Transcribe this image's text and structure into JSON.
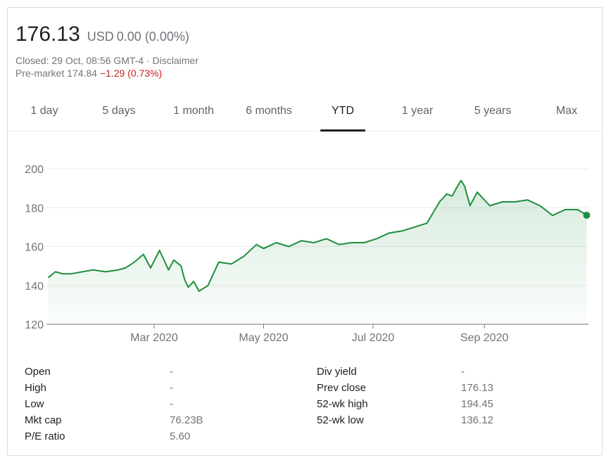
{
  "quote": {
    "price": "176.13",
    "currency": "USD",
    "change": "0.00 (0.00%)",
    "closed_text": "Closed: 29 Oct, 08:56 GMT-4 · ",
    "disclaimer": "Disclaimer",
    "premarket_label": "Pre-market ",
    "premarket_price": "174.84 ",
    "premarket_change": "−1.29 (0.73%)"
  },
  "tabs": [
    "1 day",
    "5 days",
    "1 month",
    "6 months",
    "YTD",
    "1 year",
    "5 years",
    "Max"
  ],
  "active_tab": "YTD",
  "chart_data": {
    "type": "area",
    "y_ticks": [
      "200",
      "180",
      "160",
      "140",
      "120"
    ],
    "ylim": [
      120,
      200
    ],
    "x_ticks": [
      "Mar 2020",
      "May 2020",
      "Jul 2020",
      "Sep 2020"
    ],
    "grid": true,
    "line_color": "#1e8e3e",
    "x": [
      "2020-01-02",
      "2020-01-06",
      "2020-01-10",
      "2020-01-15",
      "2020-01-21",
      "2020-01-27",
      "2020-02-03",
      "2020-02-10",
      "2020-02-14",
      "2020-02-19",
      "2020-02-24",
      "2020-02-28",
      "2020-03-04",
      "2020-03-09",
      "2020-03-12",
      "2020-03-16",
      "2020-03-18",
      "2020-03-20",
      "2020-03-23",
      "2020-03-26",
      "2020-03-31",
      "2020-04-06",
      "2020-04-13",
      "2020-04-20",
      "2020-04-27",
      "2020-05-01",
      "2020-05-08",
      "2020-05-15",
      "2020-05-22",
      "2020-05-29",
      "2020-06-05",
      "2020-06-12",
      "2020-06-19",
      "2020-06-26",
      "2020-07-03",
      "2020-07-10",
      "2020-07-17",
      "2020-07-24",
      "2020-07-31",
      "2020-08-07",
      "2020-08-11",
      "2020-08-14",
      "2020-08-17",
      "2020-08-19",
      "2020-08-21",
      "2020-08-24",
      "2020-08-28",
      "2020-09-04",
      "2020-09-11",
      "2020-09-18",
      "2020-09-25",
      "2020-10-02",
      "2020-10-09",
      "2020-10-16",
      "2020-10-23",
      "2020-10-28"
    ],
    "values": [
      144,
      147,
      146,
      146,
      147,
      148,
      147,
      148,
      149,
      152,
      156,
      149,
      158,
      148,
      153,
      150,
      143,
      139,
      142,
      137,
      140,
      152,
      151,
      155,
      161,
      159,
      162,
      160,
      163,
      162,
      164,
      161,
      162,
      162,
      164,
      167,
      168,
      170,
      172,
      183,
      187,
      186,
      191,
      194,
      191,
      181,
      188,
      181,
      183,
      183,
      184,
      181,
      176,
      179,
      179,
      176.13
    ]
  },
  "stats": {
    "left": [
      {
        "label": "Open",
        "value": "-"
      },
      {
        "label": "High",
        "value": "-"
      },
      {
        "label": "Low",
        "value": "-"
      },
      {
        "label": "Mkt cap",
        "value": "76.23B"
      },
      {
        "label": "P/E ratio",
        "value": "5.60"
      }
    ],
    "right": [
      {
        "label": "Div yield",
        "value": "-"
      },
      {
        "label": "Prev close",
        "value": "176.13"
      },
      {
        "label": "52-wk high",
        "value": "194.45"
      },
      {
        "label": "52-wk low",
        "value": "136.12"
      }
    ]
  }
}
